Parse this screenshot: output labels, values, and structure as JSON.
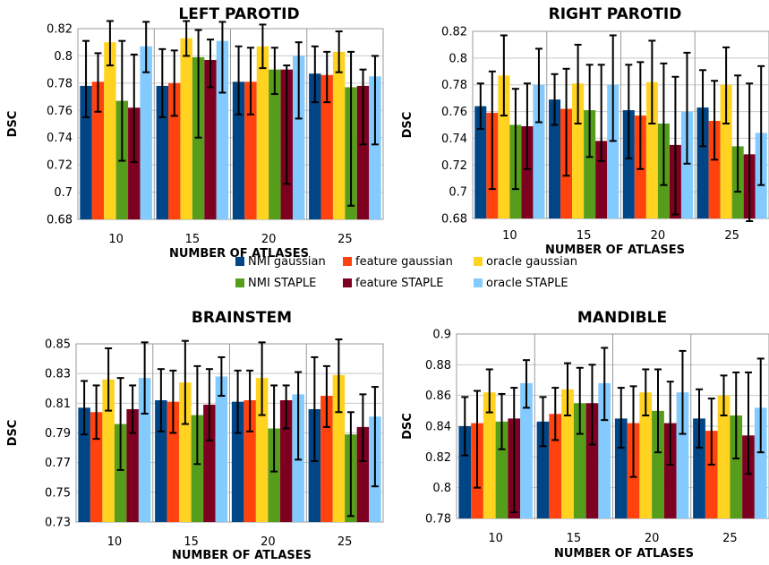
{
  "legend": {
    "placement": "center",
    "rows": [
      [
        "NMI gaussian",
        "feature gaussian",
        "oracle gaussian"
      ],
      [
        "NMI STAPLE",
        "feature STAPLE",
        "oracle STAPLE"
      ]
    ]
  },
  "series_colors": {
    "NMI gaussian": "#004586",
    "feature gaussian": "#ff420e",
    "oracle gaussian": "#ffd320",
    "NMI STAPLE": "#579d1c",
    "feature STAPLE": "#7e0021",
    "oracle STAPLE": "#83caff"
  },
  "chart_data": [
    {
      "type": "bar",
      "title": "LEFT PAROTID",
      "xlabel": "NUMBER OF ATLASES",
      "ylabel": "DSC",
      "categories": [
        "10",
        "15",
        "20",
        "25"
      ],
      "ylim": [
        0.68,
        0.82
      ],
      "yticks": [
        0.68,
        0.7,
        0.72,
        0.74,
        0.76,
        0.78,
        0.8,
        0.82
      ],
      "ytick_labels": [
        "0.68",
        "0.7",
        "0.72",
        "0.74",
        "0.76",
        "0.78",
        "0.8",
        "0.82"
      ],
      "grid": true,
      "series": [
        {
          "name": "NMI gaussian",
          "values": [
            0.778,
            0.778,
            0.781,
            0.787
          ],
          "err_low": [
            0.755,
            0.755,
            0.757,
            0.766
          ],
          "err_high": [
            0.811,
            0.805,
            0.807,
            0.807
          ]
        },
        {
          "name": "feature gaussian",
          "values": [
            0.781,
            0.78,
            0.781,
            0.786
          ],
          "err_low": [
            0.759,
            0.756,
            0.757,
            0.766
          ],
          "err_high": [
            0.802,
            0.804,
            0.806,
            0.803
          ]
        },
        {
          "name": "oracle gaussian",
          "values": [
            0.81,
            0.813,
            0.807,
            0.803
          ],
          "err_low": [
            0.793,
            0.8,
            0.791,
            0.788
          ],
          "err_high": [
            0.826,
            0.826,
            0.823,
            0.818
          ]
        },
        {
          "name": "NMI STAPLE",
          "values": [
            0.767,
            0.799,
            0.79,
            0.777
          ],
          "err_low": [
            0.723,
            0.74,
            0.772,
            0.69
          ],
          "err_high": [
            0.811,
            0.819,
            0.806,
            0.803
          ]
        },
        {
          "name": "feature STAPLE",
          "values": [
            0.762,
            0.797,
            0.79,
            0.778
          ],
          "err_low": [
            0.722,
            0.777,
            0.706,
            0.735
          ],
          "err_high": [
            0.801,
            0.812,
            0.793,
            0.79
          ]
        },
        {
          "name": "oracle STAPLE",
          "values": [
            0.807,
            0.811,
            0.8,
            0.785
          ],
          "err_low": [
            0.788,
            0.773,
            0.754,
            0.735
          ],
          "err_high": [
            0.825,
            0.825,
            0.81,
            0.8
          ]
        }
      ]
    },
    {
      "type": "bar",
      "title": "RIGHT PAROTID",
      "xlabel": "NUMBER OF ATLASES",
      "ylabel": "DSC",
      "categories": [
        "10",
        "15",
        "20",
        "25"
      ],
      "ylim": [
        0.68,
        0.82
      ],
      "yticks": [
        0.68,
        0.7,
        0.72,
        0.74,
        0.76,
        0.78,
        0.8,
        0.82
      ],
      "ytick_labels": [
        "0.68",
        "0.7",
        "0.72",
        "0.74",
        "0.76",
        "0.78",
        "0.8",
        "0.82"
      ],
      "grid": true,
      "series": [
        {
          "name": "NMI gaussian",
          "values": [
            0.764,
            0.769,
            0.761,
            0.763
          ],
          "err_low": [
            0.747,
            0.75,
            0.725,
            0.734
          ],
          "err_high": [
            0.781,
            0.788,
            0.795,
            0.791
          ]
        },
        {
          "name": "feature gaussian",
          "values": [
            0.759,
            0.762,
            0.757,
            0.753
          ],
          "err_low": [
            0.702,
            0.712,
            0.717,
            0.724
          ],
          "err_high": [
            0.79,
            0.792,
            0.797,
            0.783
          ]
        },
        {
          "name": "oracle gaussian",
          "values": [
            0.787,
            0.781,
            0.782,
            0.78
          ],
          "err_low": [
            0.757,
            0.751,
            0.751,
            0.751
          ],
          "err_high": [
            0.817,
            0.81,
            0.813,
            0.808
          ]
        },
        {
          "name": "NMI STAPLE",
          "values": [
            0.75,
            0.761,
            0.751,
            0.734
          ],
          "err_low": [
            0.702,
            0.726,
            0.705,
            0.7
          ],
          "err_high": [
            0.777,
            0.795,
            0.796,
            0.787
          ]
        },
        {
          "name": "feature STAPLE",
          "values": [
            0.749,
            0.738,
            0.735,
            0.728
          ],
          "err_low": [
            0.717,
            0.723,
            0.683,
            0.678
          ],
          "err_high": [
            0.781,
            0.795,
            0.786,
            0.781
          ]
        },
        {
          "name": "oracle STAPLE",
          "values": [
            0.78,
            0.78,
            0.76,
            0.744
          ],
          "err_low": [
            0.752,
            0.738,
            0.721,
            0.705
          ],
          "err_high": [
            0.807,
            0.817,
            0.804,
            0.794
          ]
        }
      ]
    },
    {
      "type": "bar",
      "title": "BRAINSTEM",
      "xlabel": "NUMBER OF ATLASES",
      "ylabel": "DSC",
      "categories": [
        "10",
        "15",
        "20",
        "25"
      ],
      "ylim": [
        0.73,
        0.85
      ],
      "yticks": [
        0.73,
        0.75,
        0.77,
        0.79,
        0.81,
        0.83,
        0.85
      ],
      "ytick_labels": [
        "0.73",
        "0.75",
        "0.77",
        "0.79",
        "0.81",
        "0.83",
        "0.85"
      ],
      "grid": true,
      "series": [
        {
          "name": "NMI gaussian",
          "values": [
            0.807,
            0.812,
            0.811,
            0.806
          ],
          "err_low": [
            0.789,
            0.791,
            0.79,
            0.771
          ],
          "err_high": [
            0.825,
            0.833,
            0.832,
            0.841
          ]
        },
        {
          "name": "feature gaussian",
          "values": [
            0.804,
            0.811,
            0.812,
            0.815
          ],
          "err_low": [
            0.786,
            0.79,
            0.791,
            0.794
          ],
          "err_high": [
            0.822,
            0.832,
            0.832,
            0.835
          ]
        },
        {
          "name": "oracle gaussian",
          "values": [
            0.826,
            0.824,
            0.827,
            0.829
          ],
          "err_low": [
            0.805,
            0.796,
            0.802,
            0.804
          ],
          "err_high": [
            0.847,
            0.852,
            0.851,
            0.853
          ]
        },
        {
          "name": "NMI STAPLE",
          "values": [
            0.796,
            0.802,
            0.793,
            0.789
          ],
          "err_low": [
            0.765,
            0.769,
            0.764,
            0.734
          ],
          "err_high": [
            0.827,
            0.835,
            0.822,
            0.804
          ]
        },
        {
          "name": "feature STAPLE",
          "values": [
            0.806,
            0.809,
            0.812,
            0.794
          ],
          "err_low": [
            0.79,
            0.785,
            0.793,
            0.771
          ],
          "err_high": [
            0.822,
            0.833,
            0.822,
            0.816
          ]
        },
        {
          "name": "oracle STAPLE",
          "values": [
            0.827,
            0.828,
            0.816,
            0.801
          ],
          "err_low": [
            0.803,
            0.815,
            0.772,
            0.754
          ],
          "err_high": [
            0.851,
            0.841,
            0.831,
            0.821
          ]
        }
      ]
    },
    {
      "type": "bar",
      "title": "MANDIBLE",
      "xlabel": "NUMBER OF ATLASES",
      "ylabel": "DSC",
      "categories": [
        "10",
        "15",
        "20",
        "25"
      ],
      "ylim": [
        0.78,
        0.9
      ],
      "yticks": [
        0.78,
        0.8,
        0.82,
        0.84,
        0.86,
        0.88,
        0.9
      ],
      "ytick_labels": [
        "0.78",
        "0.8",
        "0.82",
        "0.84",
        "0.86",
        "0.88",
        "0.9"
      ],
      "grid": true,
      "series": [
        {
          "name": "NMI gaussian",
          "values": [
            0.84,
            0.843,
            0.845,
            0.845
          ],
          "err_low": [
            0.821,
            0.827,
            0.826,
            0.826
          ],
          "err_high": [
            0.859,
            0.859,
            0.865,
            0.864
          ]
        },
        {
          "name": "feature gaussian",
          "values": [
            0.842,
            0.848,
            0.842,
            0.837
          ],
          "err_low": [
            0.8,
            0.831,
            0.807,
            0.815
          ],
          "err_high": [
            0.863,
            0.865,
            0.866,
            0.858
          ]
        },
        {
          "name": "oracle gaussian",
          "values": [
            0.862,
            0.864,
            0.862,
            0.86
          ],
          "err_low": [
            0.849,
            0.847,
            0.847,
            0.847
          ],
          "err_high": [
            0.877,
            0.881,
            0.877,
            0.873
          ]
        },
        {
          "name": "NMI STAPLE",
          "values": [
            0.843,
            0.855,
            0.85,
            0.847
          ],
          "err_low": [
            0.825,
            0.835,
            0.823,
            0.819
          ],
          "err_high": [
            0.861,
            0.878,
            0.877,
            0.875
          ]
        },
        {
          "name": "feature STAPLE",
          "values": [
            0.845,
            0.855,
            0.842,
            0.834
          ],
          "err_low": [
            0.784,
            0.828,
            0.815,
            0.809
          ],
          "err_high": [
            0.865,
            0.88,
            0.869,
            0.875
          ]
        },
        {
          "name": "oracle STAPLE",
          "values": [
            0.868,
            0.868,
            0.862,
            0.852
          ],
          "err_low": [
            0.852,
            0.844,
            0.835,
            0.823
          ],
          "err_high": [
            0.883,
            0.891,
            0.889,
            0.884
          ]
        }
      ]
    }
  ]
}
